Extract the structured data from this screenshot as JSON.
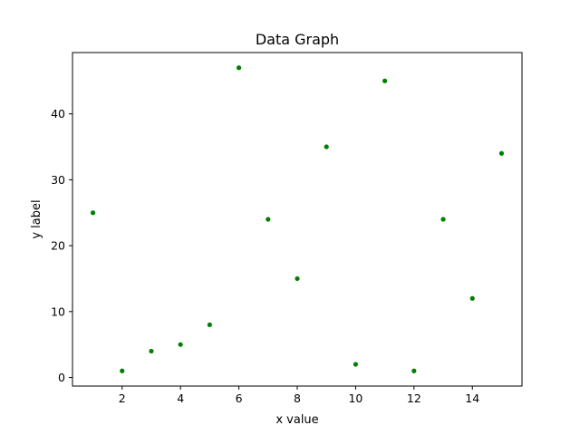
{
  "chart_data": {
    "type": "scatter",
    "title": "Data Graph",
    "xlabel": "x value",
    "ylabel": "y label",
    "xlim": [
      0.3,
      15.7
    ],
    "ylim": [
      -1.3,
      49.3
    ],
    "xticks": [
      2,
      4,
      6,
      8,
      10,
      12,
      14
    ],
    "yticks": [
      0,
      10,
      20,
      30,
      40
    ],
    "grid": false,
    "point_color": "#008000",
    "series": [
      {
        "x": [
          1,
          2,
          3,
          4,
          5,
          6,
          7,
          8,
          9,
          10,
          11,
          12,
          13,
          14,
          15
        ],
        "y": [
          25,
          1,
          4,
          5,
          8,
          47,
          24,
          15,
          35,
          2,
          45,
          1,
          24,
          12,
          34
        ]
      }
    ]
  }
}
